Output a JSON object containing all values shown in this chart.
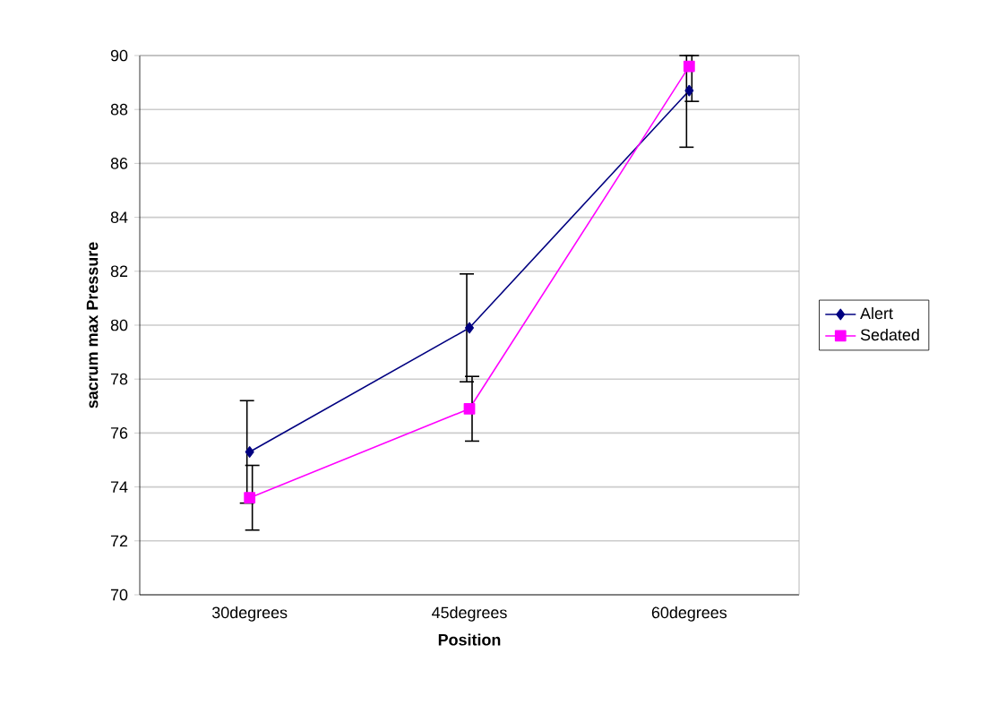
{
  "chart_data": {
    "type": "line",
    "xlabel": "Position",
    "ylabel": "sacrum max Pressure",
    "categories": [
      "30degrees",
      "45degrees",
      "60degrees"
    ],
    "series": [
      {
        "name": "Alert",
        "color": "#000080",
        "marker": "diamond",
        "values": [
          75.3,
          79.9,
          88.7
        ],
        "errors": [
          1.9,
          2.0,
          [
            86.6,
            90
          ]
        ]
      },
      {
        "name": "Sedated",
        "color": "#ff00ff",
        "marker": "square",
        "values": [
          73.6,
          76.9,
          89.6
        ],
        "errors": [
          1.2,
          1.2,
          [
            88.3,
            90
          ]
        ]
      }
    ],
    "ylim": [
      70,
      90
    ],
    "yticks": [
      70,
      72,
      74,
      76,
      78,
      80,
      82,
      84,
      86,
      88,
      90
    ],
    "grid": "y",
    "legend": "right"
  }
}
